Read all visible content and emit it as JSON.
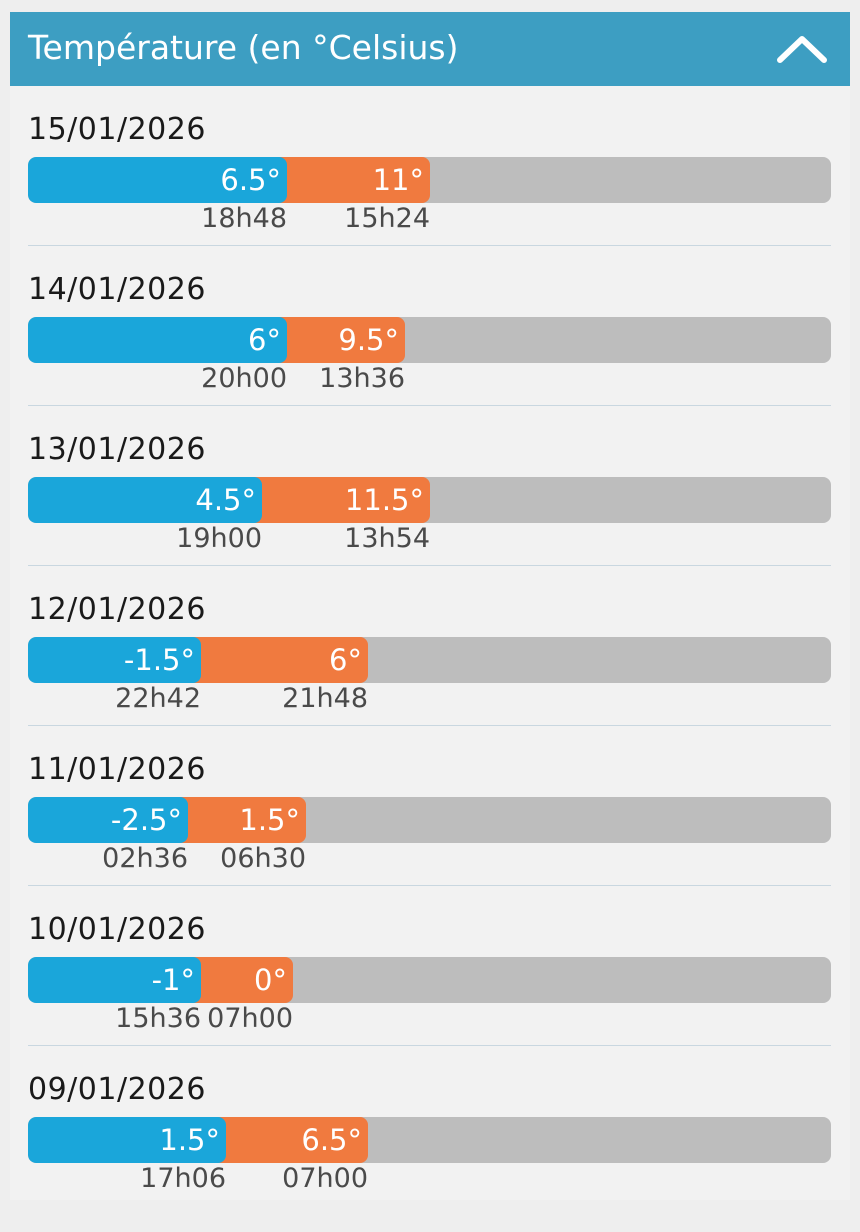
{
  "header": {
    "title": "Température (en °Celsius)",
    "collapse_icon": "chevron-up-icon"
  },
  "colors": {
    "header": "#3d9ec2",
    "min_bar": "#1aa6da",
    "max_bar": "#f07a3f",
    "track": "#bdbdbd"
  },
  "days": [
    {
      "date": "15/01/2026",
      "min_label": "6.5°",
      "max_label": "11°",
      "min_time": "18h48",
      "max_time": "15h24",
      "min_fill": 0.323,
      "max_fill": 0.501
    },
    {
      "date": "14/01/2026",
      "min_label": "6°",
      "max_label": "9.5°",
      "min_time": "20h00",
      "max_time": "13h36",
      "min_fill": 0.323,
      "max_fill": 0.47
    },
    {
      "date": "13/01/2026",
      "min_label": "4.5°",
      "max_label": "11.5°",
      "min_time": "19h00",
      "max_time": "13h54",
      "min_fill": 0.292,
      "max_fill": 0.501
    },
    {
      "date": "12/01/2026",
      "min_label": "-1.5°",
      "max_label": "6°",
      "min_time": "22h42",
      "max_time": "21h48",
      "min_fill": 0.215,
      "max_fill": 0.424
    },
    {
      "date": "11/01/2026",
      "min_label": "-2.5°",
      "max_label": "1.5°",
      "min_time": "02h36",
      "max_time": "06h30",
      "min_fill": 0.199,
      "max_fill": 0.346
    },
    {
      "date": "10/01/2026",
      "min_label": "-1°",
      "max_label": "0°",
      "min_time": "15h36",
      "max_time": "07h00",
      "min_fill": 0.215,
      "max_fill": 0.33
    },
    {
      "date": "09/01/2026",
      "min_label": "1.5°",
      "max_label": "6.5°",
      "min_time": "17h06",
      "max_time": "07h00",
      "min_fill": 0.246,
      "max_fill": 0.424
    }
  ]
}
